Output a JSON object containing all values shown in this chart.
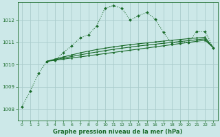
{
  "background_color": "#cce8e8",
  "grid_color": "#aacccc",
  "line_color": "#1a6b2a",
  "title": "Graphe pression niveau de la mer (hPa)",
  "xlim": [
    -0.5,
    23.5
  ],
  "ylim": [
    1007.5,
    1012.8
  ],
  "yticks": [
    1008,
    1009,
    1010,
    1011,
    1012
  ],
  "xticks": [
    0,
    1,
    2,
    3,
    4,
    5,
    6,
    7,
    8,
    9,
    10,
    11,
    12,
    13,
    14,
    15,
    16,
    17,
    18,
    19,
    20,
    21,
    22,
    23
  ],
  "series1_x": [
    0,
    1,
    2,
    3,
    4,
    5,
    6,
    7,
    8,
    9,
    10,
    11,
    12,
    13,
    14,
    15,
    16,
    17,
    18,
    19,
    20,
    21,
    22,
    23
  ],
  "series1_y": [
    1008.1,
    1008.8,
    1009.6,
    1010.15,
    1010.2,
    1010.55,
    1010.85,
    1011.2,
    1011.35,
    1011.75,
    1012.55,
    1012.65,
    1012.55,
    1012.0,
    1012.2,
    1012.35,
    1012.05,
    1011.45,
    1010.95,
    1011.05,
    1011.0,
    1011.5,
    1011.5,
    1010.75
  ],
  "series2_x": [
    3,
    4,
    5,
    6,
    7,
    8,
    9,
    10,
    11,
    12,
    13,
    14,
    15,
    16,
    17,
    18,
    19,
    20,
    21,
    22,
    23
  ],
  "series2_y": [
    1010.15,
    1010.2,
    1010.25,
    1010.3,
    1010.35,
    1010.4,
    1010.45,
    1010.5,
    1010.55,
    1010.6,
    1010.65,
    1010.7,
    1010.75,
    1010.8,
    1010.85,
    1010.9,
    1010.95,
    1011.0,
    1011.05,
    1011.1,
    1010.75
  ],
  "series3_x": [
    3,
    4,
    5,
    6,
    7,
    8,
    9,
    10,
    11,
    12,
    13,
    14,
    15,
    16,
    17,
    18,
    19,
    20,
    21,
    22,
    23
  ],
  "series3_y": [
    1010.15,
    1010.22,
    1010.3,
    1010.37,
    1010.44,
    1010.51,
    1010.57,
    1010.63,
    1010.69,
    1010.74,
    1010.79,
    1010.84,
    1010.88,
    1010.92,
    1010.96,
    1011.0,
    1011.04,
    1011.08,
    1011.12,
    1011.16,
    1010.75
  ],
  "series4_x": [
    3,
    4,
    5,
    6,
    7,
    8,
    9,
    10,
    11,
    12,
    13,
    14,
    15,
    16,
    17,
    18,
    19,
    20,
    21,
    22,
    23
  ],
  "series4_y": [
    1010.15,
    1010.25,
    1010.35,
    1010.44,
    1010.53,
    1010.61,
    1010.68,
    1010.74,
    1010.8,
    1010.85,
    1010.9,
    1010.94,
    1010.98,
    1011.02,
    1011.06,
    1011.1,
    1011.13,
    1011.17,
    1011.2,
    1011.23,
    1010.75
  ]
}
